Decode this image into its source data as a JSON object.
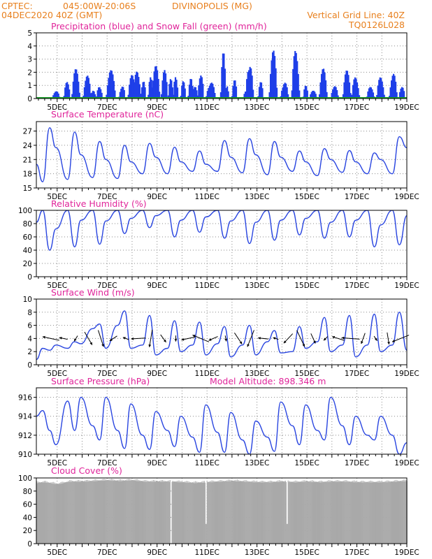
{
  "header": {
    "source": "CPTEC:",
    "location_coords": "045:00W-20:06S",
    "station": "DIVINOPOLIS (MG)",
    "run_time": "04DEC2020 40Z (GMT)",
    "grid_note": "Vertical Grid Line: 40Z",
    "model": "TQ0126L028"
  },
  "colors": {
    "precip": "#1f3fe8",
    "snow": "#18a028",
    "line": "#2a46e0",
    "cloud": "#a9a9a9",
    "title": "#e0249a",
    "header": "#e8801e"
  },
  "x_labels": [
    "5DEC",
    "7DEC",
    "9DEC",
    "11DEC",
    "13DEC",
    "15DEC",
    "17DEC",
    "19DEC"
  ],
  "chart_data": [
    {
      "name": "precipitation",
      "type": "bar",
      "title": "Precipitation (blue) and Snow Fall (green) (mm/h)",
      "ylim": [
        0,
        5
      ],
      "yticks": [
        0,
        1,
        2,
        3,
        4,
        5
      ],
      "x_start_day": 4.167,
      "x_end_day": 19.0,
      "events": [
        [
          4.95,
          0.3,
          0.7
        ],
        [
          5.4,
          0.25,
          1.4
        ],
        [
          5.75,
          0.3,
          2.3
        ],
        [
          6.2,
          0.3,
          1.9
        ],
        [
          6.45,
          0.2,
          0.7
        ],
        [
          6.7,
          0.25,
          1.3
        ],
        [
          7.15,
          0.35,
          2.2
        ],
        [
          7.6,
          0.25,
          1.4
        ],
        [
          8.0,
          0.3,
          1.9
        ],
        [
          8.2,
          0.3,
          2.3
        ],
        [
          8.45,
          0.2,
          1.6
        ],
        [
          8.75,
          0.2,
          2.4
        ],
        [
          8.95,
          0.3,
          2.5
        ],
        [
          9.3,
          0.25,
          2.2
        ],
        [
          9.55,
          0.2,
          1.6
        ],
        [
          9.75,
          0.2,
          2.5
        ],
        [
          10.05,
          0.2,
          1.4
        ],
        [
          10.35,
          0.2,
          1.6
        ],
        [
          10.5,
          0.25,
          1.4
        ],
        [
          10.75,
          0.25,
          1.9
        ],
        [
          11.15,
          0.35,
          1.8
        ],
        [
          11.65,
          0.2,
          3.9
        ],
        [
          11.8,
          0.15,
          1.0
        ],
        [
          12.1,
          0.2,
          1.6
        ],
        [
          12.55,
          0.2,
          0.7
        ],
        [
          12.7,
          0.3,
          4.0
        ],
        [
          13.15,
          0.2,
          1.3
        ],
        [
          13.65,
          0.3,
          3.8
        ],
        [
          14.1,
          0.3,
          1.8
        ],
        [
          14.55,
          0.3,
          4.3
        ],
        [
          14.95,
          0.2,
          1.0
        ],
        [
          15.25,
          0.3,
          0.6
        ],
        [
          15.65,
          0.3,
          2.3
        ],
        [
          16.1,
          0.3,
          1.2
        ],
        [
          16.6,
          0.3,
          2.2
        ],
        [
          16.95,
          0.3,
          2.1
        ],
        [
          17.55,
          0.3,
          1.0
        ],
        [
          17.95,
          0.3,
          1.8
        ],
        [
          18.45,
          0.3,
          2.4
        ],
        [
          18.8,
          0.25,
          1.0
        ]
      ]
    },
    {
      "name": "surface-temperature",
      "type": "line",
      "title": "Surface Temperature (nC)",
      "ylim": [
        15,
        29
      ],
      "yticks": [
        15,
        18,
        21,
        24,
        27
      ],
      "x": [
        4.167,
        4.42,
        4.7,
        4.95,
        5.42,
        5.7,
        5.95,
        6.42,
        6.7,
        6.95,
        7.42,
        7.7,
        7.95,
        8.42,
        8.7,
        8.95,
        9.42,
        9.7,
        9.95,
        10.42,
        10.7,
        10.95,
        11.42,
        11.7,
        11.95,
        12.42,
        12.7,
        12.95,
        13.42,
        13.7,
        13.95,
        14.42,
        14.7,
        14.95,
        15.42,
        15.7,
        15.95,
        16.42,
        16.7,
        16.95,
        17.42,
        17.7,
        17.95,
        18.42,
        18.7,
        19.0
      ],
      "y": [
        20.0,
        16.3,
        27.7,
        23.5,
        16.8,
        26.8,
        22.0,
        17.2,
        24.8,
        21.0,
        17.0,
        24.0,
        20.5,
        18.0,
        24.4,
        21.5,
        18.0,
        23.6,
        20.5,
        18.5,
        22.8,
        20.0,
        18.5,
        25.0,
        21.5,
        18.2,
        25.4,
        22.0,
        17.8,
        24.8,
        21.5,
        18.5,
        22.8,
        20.5,
        17.6,
        23.3,
        21.0,
        18.3,
        22.9,
        20.5,
        18.0,
        22.4,
        21.0,
        18.0,
        25.8,
        23.5
      ]
    },
    {
      "name": "relative-humidity",
      "type": "line",
      "title": "Relative Humidity (%)",
      "ylim": [
        0,
        100
      ],
      "yticks": [
        0,
        20,
        40,
        60,
        80,
        100
      ],
      "x": [
        4.167,
        4.42,
        4.7,
        4.95,
        5.42,
        5.7,
        5.95,
        6.42,
        6.7,
        6.95,
        7.42,
        7.7,
        7.95,
        8.42,
        8.7,
        8.95,
        9.42,
        9.7,
        9.95,
        10.42,
        10.7,
        10.95,
        11.42,
        11.7,
        11.95,
        12.42,
        12.7,
        12.95,
        13.42,
        13.7,
        13.95,
        14.42,
        14.7,
        14.95,
        15.42,
        15.7,
        15.95,
        16.42,
        16.7,
        16.95,
        17.42,
        17.7,
        17.95,
        18.42,
        18.7,
        19.0
      ],
      "y": [
        82,
        100,
        40,
        72,
        100,
        45,
        85,
        100,
        49,
        84,
        100,
        65,
        88,
        100,
        74,
        92,
        100,
        60,
        85,
        100,
        67,
        90,
        100,
        58,
        84,
        100,
        50,
        82,
        100,
        55,
        85,
        100,
        63,
        88,
        100,
        58,
        82,
        100,
        60,
        85,
        100,
        45,
        78,
        100,
        48,
        92
      ]
    },
    {
      "name": "surface-wind",
      "type": "line",
      "title": "Surface Wind (m/s)",
      "ylim": [
        0,
        10
      ],
      "yticks": [
        0,
        2,
        4,
        6,
        8,
        10
      ],
      "x": [
        4.167,
        4.42,
        4.7,
        4.95,
        5.42,
        5.7,
        5.95,
        6.42,
        6.7,
        6.95,
        7.42,
        7.7,
        7.95,
        8.42,
        8.7,
        8.95,
        9.42,
        9.7,
        9.95,
        10.42,
        10.7,
        10.95,
        11.42,
        11.7,
        11.95,
        12.42,
        12.7,
        12.95,
        13.42,
        13.7,
        13.95,
        14.42,
        14.7,
        14.95,
        15.42,
        15.7,
        15.95,
        16.42,
        16.7,
        16.95,
        17.42,
        17.7,
        17.95,
        18.42,
        18.7,
        19.0
      ],
      "y": [
        0.8,
        2.5,
        2.2,
        3.0,
        2.5,
        3.5,
        3.2,
        5.5,
        6.2,
        2.5,
        6.0,
        8.2,
        2.5,
        3.0,
        7.5,
        1.5,
        2.5,
        6.7,
        2.0,
        3.0,
        6.5,
        1.5,
        3.2,
        5.8,
        1.2,
        3.0,
        6.0,
        1.5,
        3.5,
        5.2,
        1.8,
        2.0,
        5.8,
        2.5,
        3.5,
        7.2,
        2.0,
        3.0,
        7.5,
        1.2,
        3.0,
        7.7,
        2.0,
        3.0,
        8.0,
        2.2
      ]
    },
    {
      "name": "surface-pressure",
      "type": "line",
      "title": "Surface Pressure (hPa)",
      "annotation": "Model Altitude: 898.346 m",
      "ylim": [
        910,
        917
      ],
      "yticks": [
        910,
        912,
        914,
        916
      ],
      "x": [
        4.167,
        4.42,
        4.7,
        4.95,
        5.42,
        5.7,
        5.95,
        6.42,
        6.7,
        6.95,
        7.42,
        7.7,
        7.95,
        8.42,
        8.7,
        8.95,
        9.42,
        9.7,
        9.95,
        10.42,
        10.7,
        10.95,
        11.42,
        11.7,
        11.95,
        12.42,
        12.7,
        12.95,
        13.42,
        13.7,
        13.95,
        14.42,
        14.7,
        14.95,
        15.42,
        15.7,
        15.95,
        16.42,
        16.7,
        16.95,
        17.42,
        17.7,
        17.95,
        18.42,
        18.7,
        19.0
      ],
      "y": [
        914.0,
        914.6,
        912.5,
        911.0,
        915.6,
        912.5,
        916.0,
        913.0,
        911.5,
        916.0,
        912.5,
        910.6,
        915.3,
        912.0,
        910.5,
        914.5,
        912.5,
        910.8,
        914.0,
        911.8,
        910.2,
        915.2,
        912.3,
        910.2,
        914.4,
        911.5,
        910.0,
        913.5,
        911.8,
        910.3,
        915.5,
        913.0,
        911.0,
        915.2,
        912.5,
        911.5,
        916.0,
        913.0,
        911.0,
        914.0,
        912.0,
        911.5,
        914.0,
        912.0,
        910.0,
        911.2
      ]
    },
    {
      "name": "cloud-cover",
      "type": "area",
      "title": "Cloud Cover (%)",
      "ylim": [
        0,
        100
      ],
      "yticks": [
        0,
        20,
        40,
        60,
        80,
        100
      ],
      "x": [
        4.167,
        4.5,
        5.0,
        5.5,
        6.0,
        6.5,
        7.0,
        7.5,
        8.0,
        8.5,
        9.0,
        9.5,
        10.0,
        10.5,
        11.0,
        11.5,
        12.0,
        12.5,
        13.0,
        13.5,
        14.0,
        14.5,
        15.0,
        15.5,
        16.0,
        16.5,
        17.0,
        17.5,
        18.0,
        18.5,
        19.0
      ],
      "y": [
        95,
        96,
        93,
        97,
        97,
        98,
        99,
        98,
        99,
        97,
        97,
        97,
        96,
        95,
        96,
        97,
        98,
        97,
        96,
        96,
        97,
        96,
        97,
        96,
        97,
        97,
        96,
        96,
        96,
        97,
        98
      ],
      "dips": [
        [
          9.55,
          0
        ],
        [
          10.95,
          30
        ],
        [
          14.2,
          30
        ]
      ]
    }
  ]
}
